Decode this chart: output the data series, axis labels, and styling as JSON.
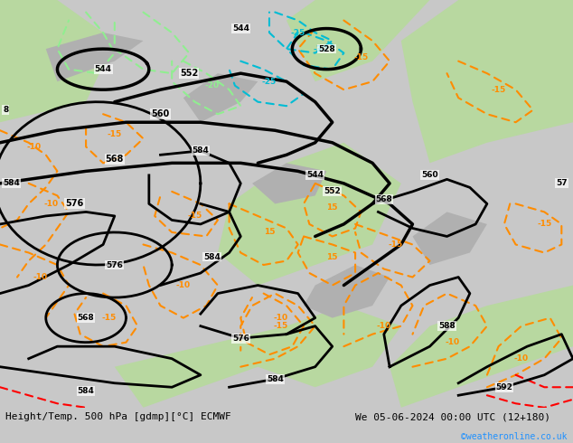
{
  "title_left": "Height/Temp. 500 hPa [gdmp][°C] ECMWF",
  "title_right": "We 05-06-2024 00:00 UTC (12+180)",
  "watermark": "©weatheronline.co.uk",
  "bg_color": "#d3d3d3",
  "land_green": "#b8d8a0",
  "land_gray": "#c8c8c8",
  "height_color": "#000000",
  "temp_warm_color": "#ff8c00",
  "temp_cold_color": "#00bcd4",
  "temp_cold2_color": "#90ee90",
  "red_color": "#ff0000",
  "title_color": "#000000",
  "watermark_color": "#1e90ff",
  "fig_width": 6.34,
  "fig_height": 4.9,
  "dpi": 100
}
